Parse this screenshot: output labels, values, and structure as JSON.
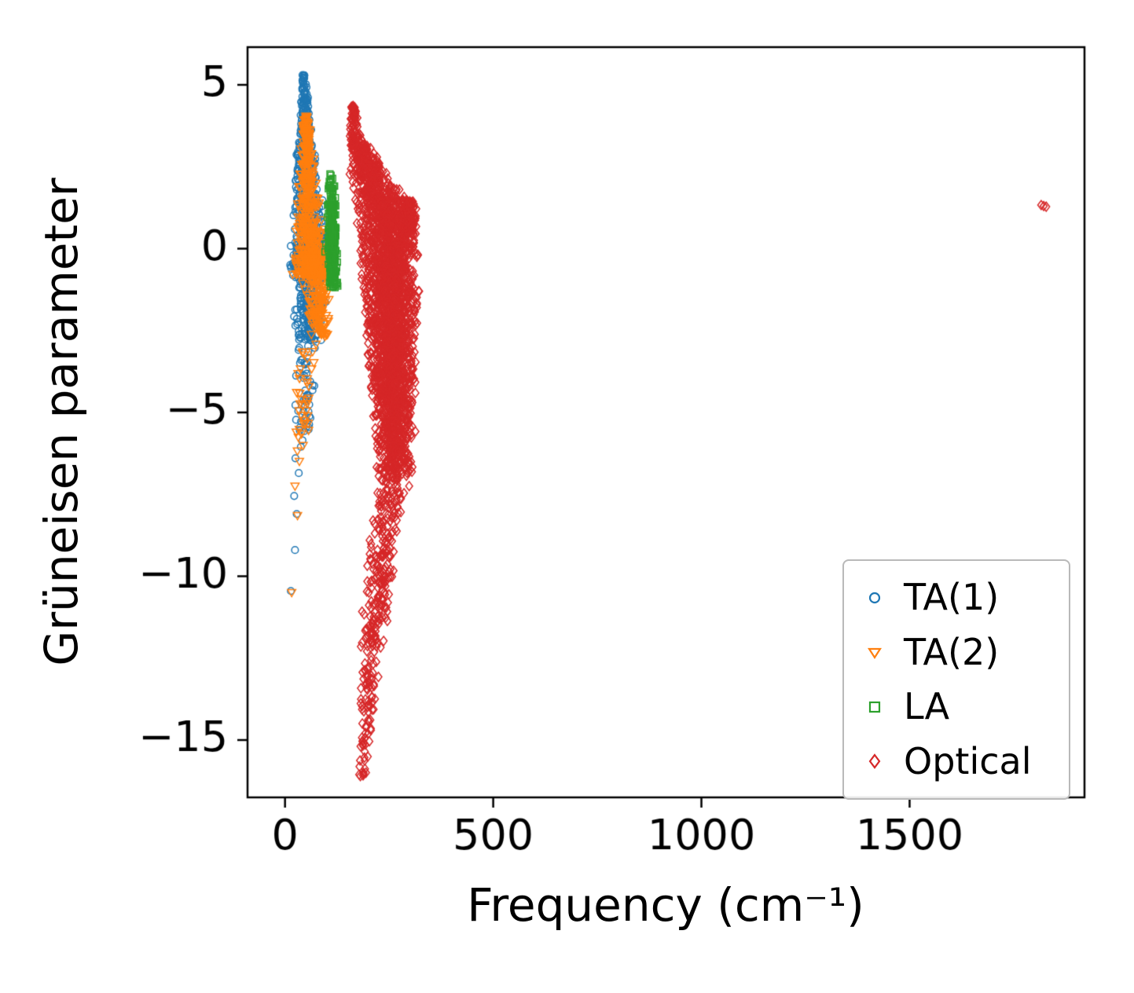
{
  "chart_data": {
    "type": "scatter",
    "title": "",
    "xlabel": "Frequency (cm⁻¹)",
    "ylabel": "Grüneisen parameter",
    "xlim": [
      -90,
      1920
    ],
    "ylim": [
      -16.75,
      6.15
    ],
    "xticks": {
      "values": [
        0,
        500,
        1000,
        1500
      ],
      "labels": [
        "0",
        "500",
        "1000",
        "1500"
      ]
    },
    "yticks": {
      "values": [
        5,
        0,
        -5,
        -10,
        -15
      ],
      "labels": [
        "5",
        "0",
        "−5",
        "−10",
        "−15"
      ]
    },
    "grid": false,
    "legend_position": "lower right",
    "series": [
      {
        "name": "TA(1)",
        "marker": "circle",
        "color": "#1f77b4",
        "seed": 101,
        "x_range": [
          5,
          120
        ],
        "y_range": [
          -10.5,
          5.3
        ],
        "clusters": [
          {
            "count": 650,
            "y0": -0.6,
            "y1": 5.3,
            "cx0": 60,
            "cx1": 45,
            "w0": 108,
            "w1": 8,
            "p": 1.9
          },
          {
            "count": 190,
            "y0": -2.8,
            "y1": -0.5,
            "cx0": 55,
            "cx1": 60,
            "w0": 78,
            "w1": 95,
            "p": 1
          },
          {
            "count": 55,
            "y0": -5.6,
            "y1": -2.6,
            "cx0": 45,
            "cx1": 52,
            "w0": 48,
            "w1": 66,
            "p": 1
          }
        ],
        "points": [
          [
            25,
            -6.4
          ],
          [
            33,
            -6.85
          ],
          [
            22,
            -7.55
          ],
          [
            28,
            -8.1
          ],
          [
            24,
            -9.2
          ],
          [
            14,
            -10.45
          ],
          [
            38,
            -6.05
          ],
          [
            42,
            -5.85
          ]
        ]
      },
      {
        "name": "TA(2)",
        "marker": "triangle-down",
        "color": "#ff7f0e",
        "seed": 202,
        "x_range": [
          8,
          120
        ],
        "y_range": [
          -10.5,
          4.1
        ],
        "clusters": [
          {
            "count": 520,
            "y0": -0.8,
            "y1": 4.05,
            "cx0": 63,
            "cx1": 50,
            "w0": 102,
            "w1": 10,
            "p": 1.9
          },
          {
            "count": 130,
            "y0": -2.7,
            "y1": -0.8,
            "cx0": 84,
            "cx1": 74,
            "w0": 58,
            "w1": 84,
            "p": 1
          },
          {
            "count": 35,
            "y0": -6.6,
            "y1": -2.8,
            "cx0": 38,
            "cx1": 54,
            "w0": 30,
            "w1": 54,
            "p": 1
          }
        ],
        "points": [
          [
            30,
            -8.15
          ],
          [
            16,
            -10.5
          ],
          [
            24,
            -7.25
          ],
          [
            34,
            -4.95
          ],
          [
            39,
            -4.6
          ],
          [
            27,
            -5.6
          ]
        ]
      },
      {
        "name": "LA",
        "marker": "square",
        "color": "#2ca02c",
        "seed": 303,
        "x_range": [
          95,
          135
        ],
        "y_range": [
          -1.2,
          2.3
        ],
        "clusters": [
          {
            "count": 270,
            "y0": -1.2,
            "y1": 1.6,
            "cx0": 116,
            "cx1": 111,
            "w0": 26,
            "w1": 22,
            "p": 1
          },
          {
            "count": 22,
            "y0": 1.6,
            "y1": 2.3,
            "cx0": 112,
            "cx1": 112,
            "w0": 20,
            "w1": 13,
            "p": 1
          }
        ],
        "points": [
          [
            98,
            0.15
          ],
          [
            96,
            -0.1
          ],
          [
            108,
            2.28
          ]
        ]
      },
      {
        "name": "Optical",
        "marker": "diamond",
        "color": "#d62728",
        "seed": 404,
        "x_range": [
          150,
          1828
        ],
        "y_range": [
          -16.1,
          4.35
        ],
        "clusters": [
          {
            "count": 90,
            "y0": 3.1,
            "y1": 4.35,
            "cx0": 170,
            "cx1": 163,
            "w0": 40,
            "w1": 13,
            "p": 1
          },
          {
            "count": 330,
            "y0": 1.4,
            "y1": 3.2,
            "cx0": 228,
            "cx1": 180,
            "w0": 148,
            "w1": 48,
            "p": 1
          },
          {
            "count": 110,
            "y0": 0.4,
            "y1": 1.5,
            "cx0": 300,
            "cx1": 296,
            "w0": 52,
            "w1": 44,
            "p": 1
          },
          {
            "count": 2100,
            "y0": -7.0,
            "y1": 1.5,
            "cx0": 265,
            "cx1": 245,
            "w0": 92,
            "w1": 168,
            "p": 0.8
          },
          {
            "count": 240,
            "y0": -12.2,
            "y1": -6.9,
            "cx0": 206,
            "cx1": 262,
            "w0": 68,
            "w1": 92,
            "p": 1
          },
          {
            "count": 85,
            "y0": -16.1,
            "y1": -12.2,
            "cx0": 186,
            "cx1": 206,
            "w0": 28,
            "w1": 66,
            "p": 1
          }
        ],
        "points": [
          [
            1822,
            1.3
          ],
          [
            1816,
            1.33
          ],
          [
            1828,
            1.28
          ]
        ]
      }
    ]
  }
}
